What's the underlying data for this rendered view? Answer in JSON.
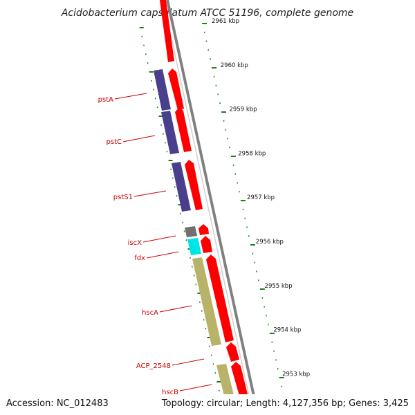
{
  "title": "Acidobacterium capsulatum ATCC 51196, complete genome",
  "footer": {
    "accession": "Accession: NC_012483",
    "summary": "Topology: circular; Length: 4,127,356 bp; Genes: 3,425"
  },
  "colors": {
    "backbone": "#808080",
    "forward_cds": "#ff0000",
    "reverse_pst": "#4a3f8c",
    "reverse_hsc": "#b9b36a",
    "iscX": "#707070",
    "fdx": "#00e6e6",
    "tick": "#1a7f1a",
    "label": "#cc0000"
  },
  "kbp_ticks": [
    "2961 kbp",
    "2960 kbp",
    "2959 kbp",
    "2958 kbp",
    "2957 kbp",
    "2956 kbp",
    "2955 kbp",
    "2954 kbp",
    "2953 kbp"
  ],
  "gene_labels": [
    "pstA",
    "pstC",
    "pstS1",
    "iscX",
    "fdx",
    "hscA",
    "ACP_2548",
    "hscB"
  ]
}
